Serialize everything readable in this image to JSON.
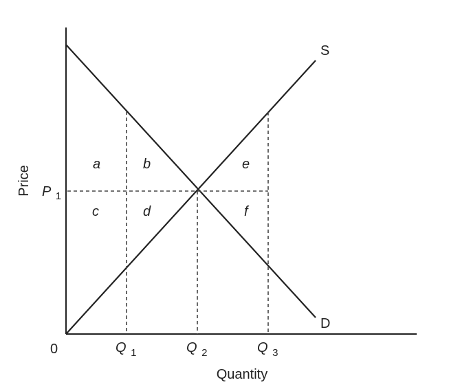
{
  "diagram": {
    "axes": {
      "x_label": "Quantity",
      "y_label": "Price",
      "origin_label": "0"
    },
    "price_label": {
      "main": "P",
      "sub": "1"
    },
    "quantity_labels": [
      {
        "main": "Q",
        "sub": "1"
      },
      {
        "main": "Q",
        "sub": "2"
      },
      {
        "main": "Q",
        "sub": "3"
      }
    ],
    "curves": {
      "supply_label": "S",
      "demand_label": "D"
    },
    "areas": {
      "a": "a",
      "b": "b",
      "c": "c",
      "d": "d",
      "e": "e",
      "f": "f"
    }
  }
}
